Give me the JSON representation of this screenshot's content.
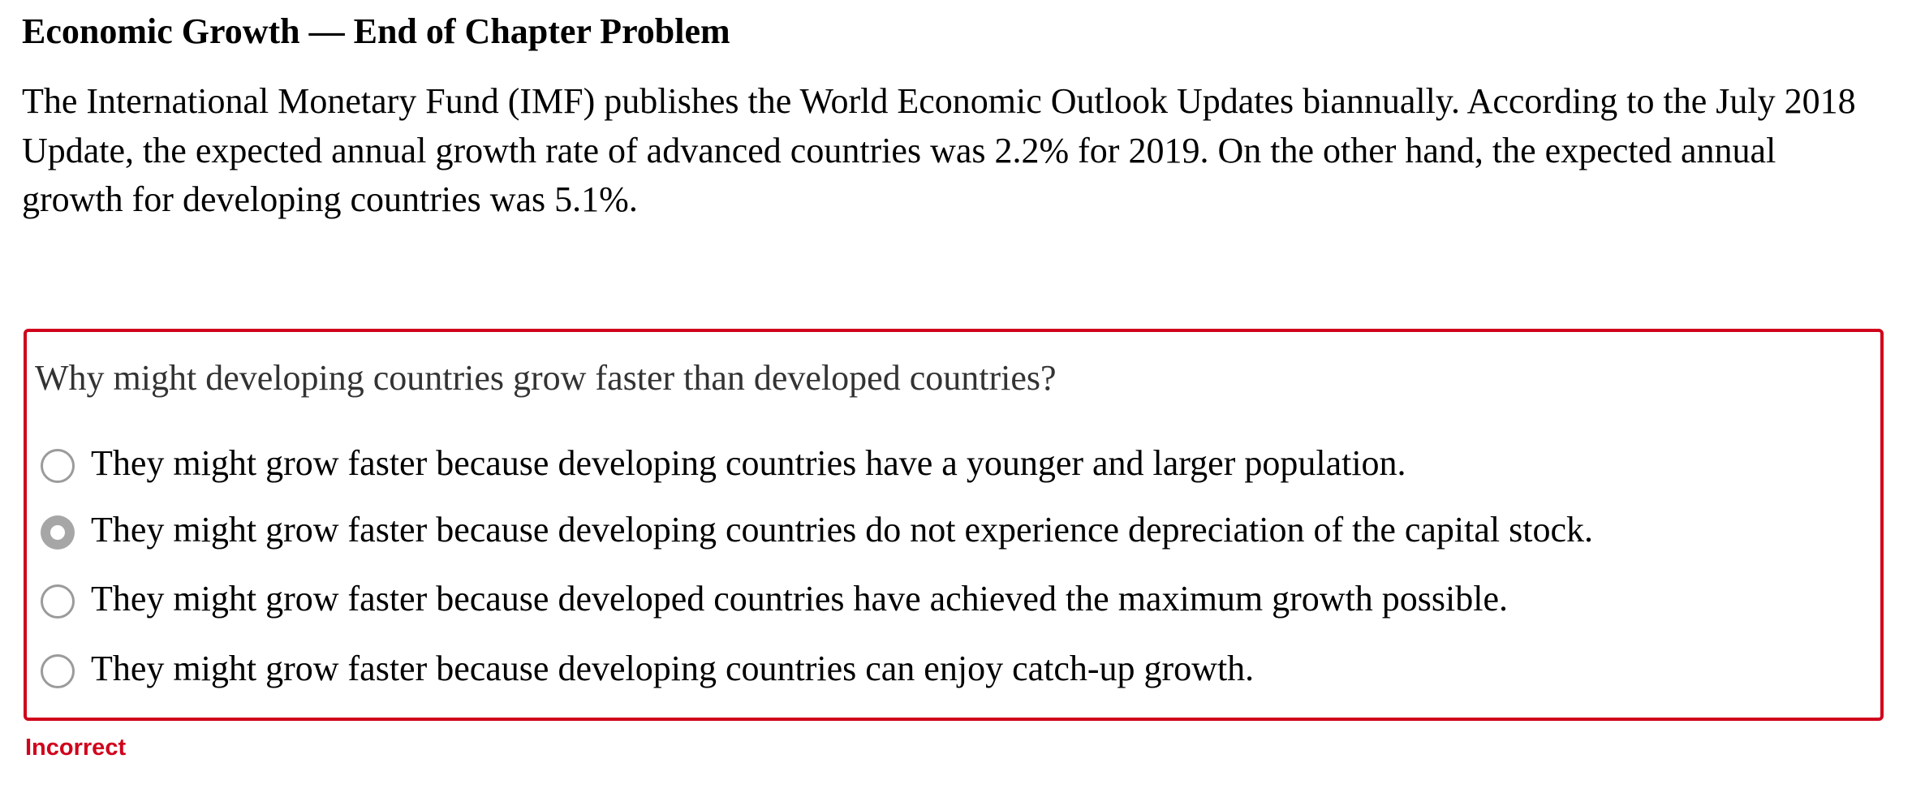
{
  "header": {
    "title": "Economic Growth — End of Chapter Problem"
  },
  "intro": {
    "text": "The International Monetary Fund (IMF) publishes the World Economic Outlook Updates biannually. According to the July 2018 Update, the expected annual growth rate of advanced countries was 2.2% for 2019. On the other hand, the expected annual growth for developing countries was 5.1%."
  },
  "question": {
    "prompt": "Why might developing countries grow faster than developed countries?",
    "options": [
      {
        "label": "They might grow faster because developing countries have a younger and larger population.",
        "selected": false
      },
      {
        "label": "They might grow faster because developing countries do not experience depreciation of the capital stock.",
        "selected": true
      },
      {
        "label": "They might grow faster because developed countries have achieved the maximum growth possible.",
        "selected": false
      },
      {
        "label": "They might grow faster because developing countries can enjoy catch-up growth.",
        "selected": false
      }
    ],
    "feedback": "Incorrect"
  },
  "colors": {
    "error": "#d0021b",
    "radio_border": "#9b9b9b",
    "radio_selected": "#a6a6a6",
    "question_text": "#333333"
  }
}
